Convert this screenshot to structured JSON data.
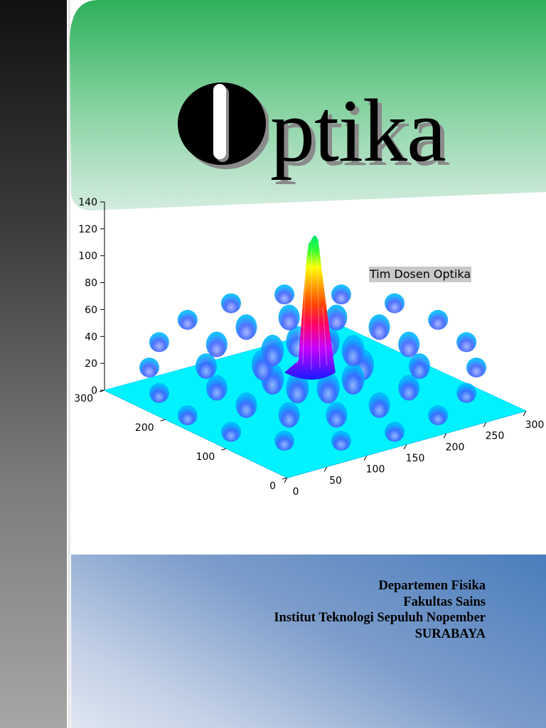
{
  "cover": {
    "title_initial": "O",
    "title_rest": "ptika",
    "author": "Tim Dosen Optika",
    "institution": [
      "Departemen Fisika",
      "Fakultas Sains",
      "Institut Teknologi Sepuluh Nopember",
      "SURABAYA"
    ]
  },
  "colors": {
    "green_top": "#2db05a",
    "green_bottom": "#d4ecdf",
    "blue_dark": "#4a7dbd",
    "blue_light": "#dfe6f1",
    "surface_base": "#00f0ff"
  },
  "chart_data": {
    "type": "surface",
    "title": "",
    "z_axis": {
      "ticks": [
        0,
        20,
        40,
        60,
        80,
        100,
        120,
        140
      ],
      "range": [
        0,
        140
      ]
    },
    "x_axis": {
      "ticks": [
        0,
        50,
        100,
        150,
        200,
        250,
        300
      ],
      "range": [
        0,
        300
      ]
    },
    "y_axis": {
      "ticks": [
        0,
        100,
        200,
        300
      ],
      "range": [
        0,
        300
      ]
    },
    "peak": {
      "x": 150,
      "y": 150,
      "z": 130
    },
    "pattern": "2D diffraction pattern (central peak with side lobes)",
    "colormap": "jet",
    "grid": false
  }
}
